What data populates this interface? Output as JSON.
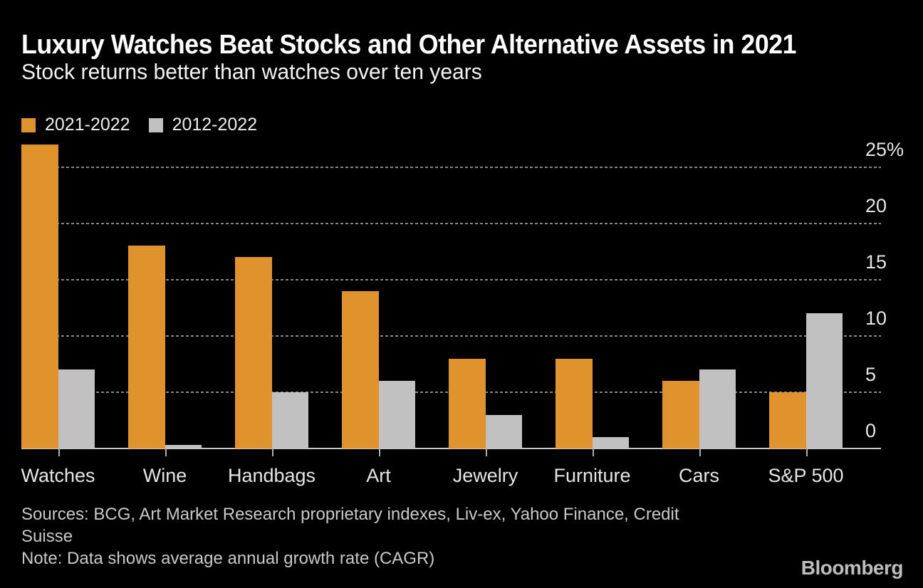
{
  "header": {
    "title": "Luxury Watches Beat Stocks and Other Alternative Assets in 2021",
    "subtitle": "Stock returns better than watches over ten years"
  },
  "chart_data": {
    "type": "bar",
    "categories": [
      "Watches",
      "Wine",
      "Handbags",
      "Art",
      "Jewelry",
      "Furniture",
      "Cars",
      "S&P 500"
    ],
    "series": [
      {
        "name": "2021-2022",
        "color": "#E0922D",
        "values": [
          27,
          18,
          17,
          14,
          8,
          8,
          6,
          5
        ]
      },
      {
        "name": "2012-2022",
        "color": "#C1C1C1",
        "values": [
          7,
          0.3,
          5,
          6,
          3,
          1,
          7,
          12
        ]
      }
    ],
    "title": "Luxury Watches Beat Stocks and Other Alternative Assets in 2021",
    "subtitle": "Stock returns better than watches over ten years",
    "xlabel": "",
    "ylabel": "",
    "unit": "percent",
    "yticks": [
      0,
      5,
      10,
      15,
      20,
      25
    ],
    "ytick_labels": [
      "0",
      "5",
      "10",
      "15",
      "20",
      "25%"
    ],
    "ylim": [
      0,
      27.2
    ],
    "grid": "horizontal-dashed",
    "legend_position": "top-left"
  },
  "footer": {
    "sources_line1": "Sources: BCG, Art Market Research proprietary indexes, Liv-ex, Yahoo Finance, Credit",
    "sources_line2": "Suisse",
    "note": "Note: Data shows average annual growth rate (CAGR)",
    "brand": "Bloomberg"
  },
  "colors": {
    "background": "#000000",
    "title_text": "#FFFFFF",
    "axis_text": "#E6E6E6",
    "gridline": "#858585",
    "axis_line": "#C9C9C9",
    "footer_text": "#C9C9C9",
    "bar_orange": "#E0922D",
    "bar_gray": "#C1C1C1"
  }
}
